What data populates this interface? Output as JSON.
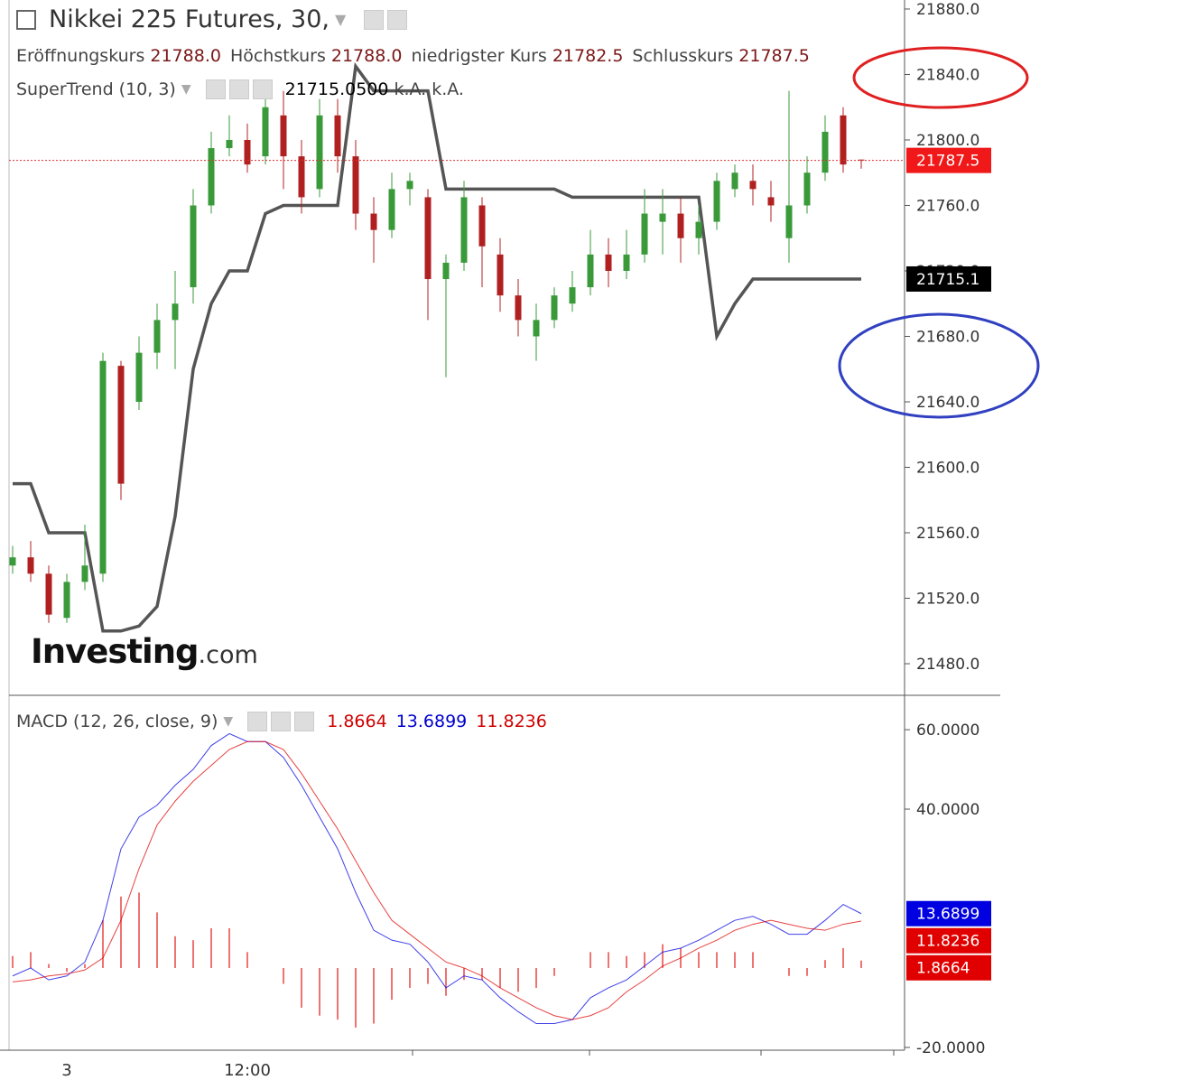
{
  "header": {
    "title": "Nikkei 225 Futures, 30,",
    "ohlc": [
      {
        "name": "Eröffnungskurs",
        "label": "21788.0"
      },
      {
        "name": "Höchstkurs",
        "label": "21788.0"
      },
      {
        "name": "niedrigster Kurs",
        "label": "21782.5"
      },
      {
        "name": "Schlusskurs",
        "label": "21787.5"
      }
    ]
  },
  "watermark": [
    "Investing",
    ".com"
  ],
  "chart_data": [
    {
      "type": "candlestick",
      "up_color": "#3a9a3a",
      "down_color": "#b02020",
      "categories": [
        null,
        null,
        null,
        "3",
        null,
        null,
        null,
        null,
        null,
        null,
        null,
        null,
        null,
        "12:00",
        null,
        null,
        null,
        null,
        null,
        null,
        null,
        null,
        null,
        null,
        null,
        null,
        null,
        null,
        null,
        null,
        null,
        null,
        null,
        null,
        null,
        null,
        null,
        null,
        null,
        null,
        null,
        null,
        null,
        null,
        null,
        null,
        null,
        null
      ],
      "open": [
        21540,
        21545,
        21535,
        21508,
        21530,
        21535,
        21662,
        21640,
        21670,
        21690,
        21710,
        21760,
        21795,
        21800,
        21790,
        21815,
        21790,
        21770,
        21815,
        21790,
        21755,
        21745,
        21770,
        21765,
        21715,
        21725,
        21760,
        21730,
        21705,
        21680,
        21690,
        21700,
        21710,
        21730,
        21720,
        21730,
        21750,
        21755,
        21740,
        21750,
        21770,
        21775,
        21765,
        21740,
        21760,
        21780,
        21815,
        21788
      ],
      "high": [
        21552,
        21555,
        21540,
        21535,
        21565,
        21670,
        21665,
        21680,
        21700,
        21720,
        21770,
        21805,
        21815,
        21810,
        21830,
        21830,
        21800,
        21825,
        21825,
        21800,
        21765,
        21780,
        21780,
        21770,
        21730,
        21775,
        21765,
        21740,
        21715,
        21700,
        21710,
        21720,
        21745,
        21740,
        21745,
        21770,
        21770,
        21765,
        21760,
        21780,
        21785,
        21785,
        21775,
        21830,
        21790,
        21815,
        21820,
        21788
      ],
      "low": [
        21535,
        21530,
        21505,
        21505,
        21525,
        21530,
        21580,
        21635,
        21660,
        21660,
        21700,
        21755,
        21790,
        21780,
        21785,
        21770,
        21755,
        21765,
        21780,
        21745,
        21725,
        21740,
        21760,
        21690,
        21655,
        21720,
        21710,
        21695,
        21680,
        21665,
        21685,
        21695,
        21705,
        21710,
        21715,
        21725,
        21730,
        21725,
        21730,
        21745,
        21765,
        21760,
        21750,
        21725,
        21755,
        21775,
        21780,
        21782.5
      ],
      "close": [
        21545,
        21535,
        21510,
        21530,
        21540,
        21665,
        21590,
        21670,
        21690,
        21700,
        21760,
        21795,
        21800,
        21785,
        21820,
        21790,
        21765,
        21815,
        21790,
        21755,
        21745,
        21770,
        21775,
        21715,
        21725,
        21765,
        21735,
        21705,
        21690,
        21690,
        21705,
        21710,
        21730,
        21720,
        21730,
        21755,
        21755,
        21740,
        21750,
        21775,
        21780,
        21770,
        21760,
        21760,
        21780,
        21805,
        21785,
        21787.5
      ],
      "ylim": [
        21460.7,
        21885.5
      ],
      "yticks": [
        {
          "value": 21480,
          "label": "21480.0"
        },
        {
          "value": 21520,
          "label": "21520.0"
        },
        {
          "value": 21560,
          "label": "21560.0"
        },
        {
          "value": 21600,
          "label": "21600.0"
        },
        {
          "value": 21640,
          "label": "21640.0"
        },
        {
          "value": 21680,
          "label": "21680.0"
        },
        {
          "value": 21720,
          "label": "21720.0"
        },
        {
          "value": 21760,
          "label": "21760.0"
        },
        {
          "value": 21800,
          "label": "21800.0"
        },
        {
          "value": 21840,
          "label": "21840.0"
        },
        {
          "value": 21880,
          "label": "21880.0"
        }
      ],
      "overlay": {
        "name": "SuperTrend",
        "params": "(10, 3)",
        "color": "#555555",
        "value_label": "21715.0500",
        "extra": [
          "k.A.",
          "k.A."
        ],
        "tag_label": "21715.1",
        "values": [
          21590,
          21590,
          21560,
          21560,
          21560,
          21500,
          21500,
          21503,
          21515,
          21570,
          21660,
          21700,
          21720,
          21720,
          21755,
          21760,
          21760,
          21760,
          21760,
          21845,
          21830,
          21830,
          21830,
          21830,
          21770,
          21770,
          21770,
          21770,
          21770,
          21770,
          21770,
          21765,
          21765,
          21765,
          21765,
          21765,
          21765,
          21765,
          21765,
          21680,
          21700,
          21715,
          21715,
          21715,
          21715,
          21715,
          21715,
          21715.05
        ]
      }
    },
    {
      "type": "macd",
      "name": "MACD",
      "params": "(12, 26, close, 9)",
      "ylim": [
        -20.7,
        68.2
      ],
      "yticks": [
        {
          "value": 60,
          "label": "60.0000"
        },
        {
          "value": 40,
          "label": "40.0000"
        },
        {
          "value": -20,
          "label": "-20.0000"
        }
      ],
      "series": [
        {
          "type": "bar",
          "color": "#e00000",
          "values": [
            3,
            4,
            1,
            -1,
            1,
            12,
            18,
            19,
            14,
            8,
            7,
            10,
            10,
            4,
            0,
            -4,
            -10,
            -12,
            -13,
            -15,
            -14,
            -8,
            -5,
            -4,
            -7,
            -3,
            -3,
            -5,
            -6,
            -5,
            -2,
            0,
            4,
            4,
            3,
            4,
            6,
            5,
            4,
            4,
            4,
            4,
            0,
            -2,
            -2,
            2,
            5,
            1.8664
          ]
        },
        {
          "type": "line",
          "color": "#0000e0",
          "values": [
            -2,
            0,
            -3,
            -2,
            1.5,
            12,
            30,
            38,
            41,
            46,
            50,
            56,
            59,
            57,
            57,
            53,
            46,
            38,
            30,
            19,
            9.5,
            7,
            6,
            1.5,
            -5,
            -2,
            -3,
            -7.5,
            -11,
            -14,
            -14,
            -13,
            -7.5,
            -5,
            -3,
            0.5,
            4,
            5,
            7,
            9.5,
            12,
            13,
            11,
            8.5,
            8.5,
            12,
            16,
            13.6899
          ]
        },
        {
          "type": "line",
          "color": "#e00000",
          "values": [
            -3.5,
            -3,
            -2,
            -1.5,
            -0.5,
            2.5,
            12,
            25,
            36,
            42,
            47,
            51,
            55,
            57,
            57,
            55,
            49,
            42,
            35,
            27,
            19,
            12,
            8.5,
            5,
            1.5,
            0,
            -2,
            -5,
            -7.5,
            -10,
            -12,
            -13,
            -12,
            -10,
            -6,
            -3,
            0.5,
            2.5,
            5,
            7,
            9.5,
            11,
            12,
            11,
            10,
            9.5,
            11,
            11.8236
          ]
        }
      ]
    }
  ]
}
